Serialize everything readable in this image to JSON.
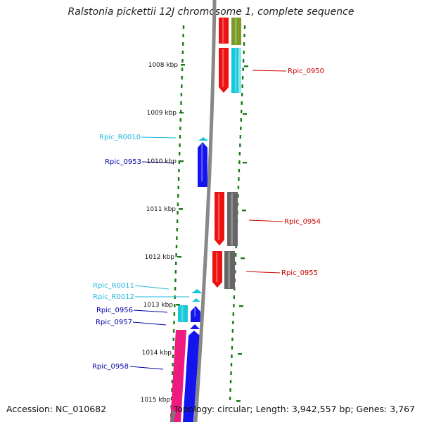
{
  "title": "Ralstonia pickettii 12J chromosome 1, complete sequence",
  "footer": {
    "accession": "Accession: NC_010682",
    "summary": "Topology: circular; Length: 3,942,557 bp; Genes: 3,767"
  },
  "colors": {
    "red": "#ee1111",
    "olive": "#7a9a25",
    "cyan": "#18c8d8",
    "blue": "#1414ee",
    "gray": "#666666",
    "pink": "#ee1a80",
    "ticks": "#1a7a1a",
    "backbone": "#888888",
    "rna_label": "#22b6dd",
    "blue_label": "#0000aa",
    "red_label": "#cc0000"
  },
  "kbp_labels": [
    "1008 kbp",
    "1009 kbp",
    "1010 kbp",
    "1011 kbp",
    "1012 kbp",
    "1013 kbp",
    "1014 kbp",
    "1015 kbp"
  ],
  "gene_labels": [
    {
      "text": "Rpic_0950",
      "color": "red"
    },
    {
      "text": "Rpic_R0010",
      "color": "rna"
    },
    {
      "text": "Rpic_0953",
      "color": "blue"
    },
    {
      "text": "Rpic_0954",
      "color": "red"
    },
    {
      "text": "Rpic_0955",
      "color": "red"
    },
    {
      "text": "Rpic_R0011",
      "color": "rna"
    },
    {
      "text": "Rpic_R0012",
      "color": "rna"
    },
    {
      "text": "Rpic_0956",
      "color": "blue"
    },
    {
      "text": "Rpic_0957",
      "color": "blue"
    },
    {
      "text": "Rpic_0958",
      "color": "blue"
    }
  ]
}
